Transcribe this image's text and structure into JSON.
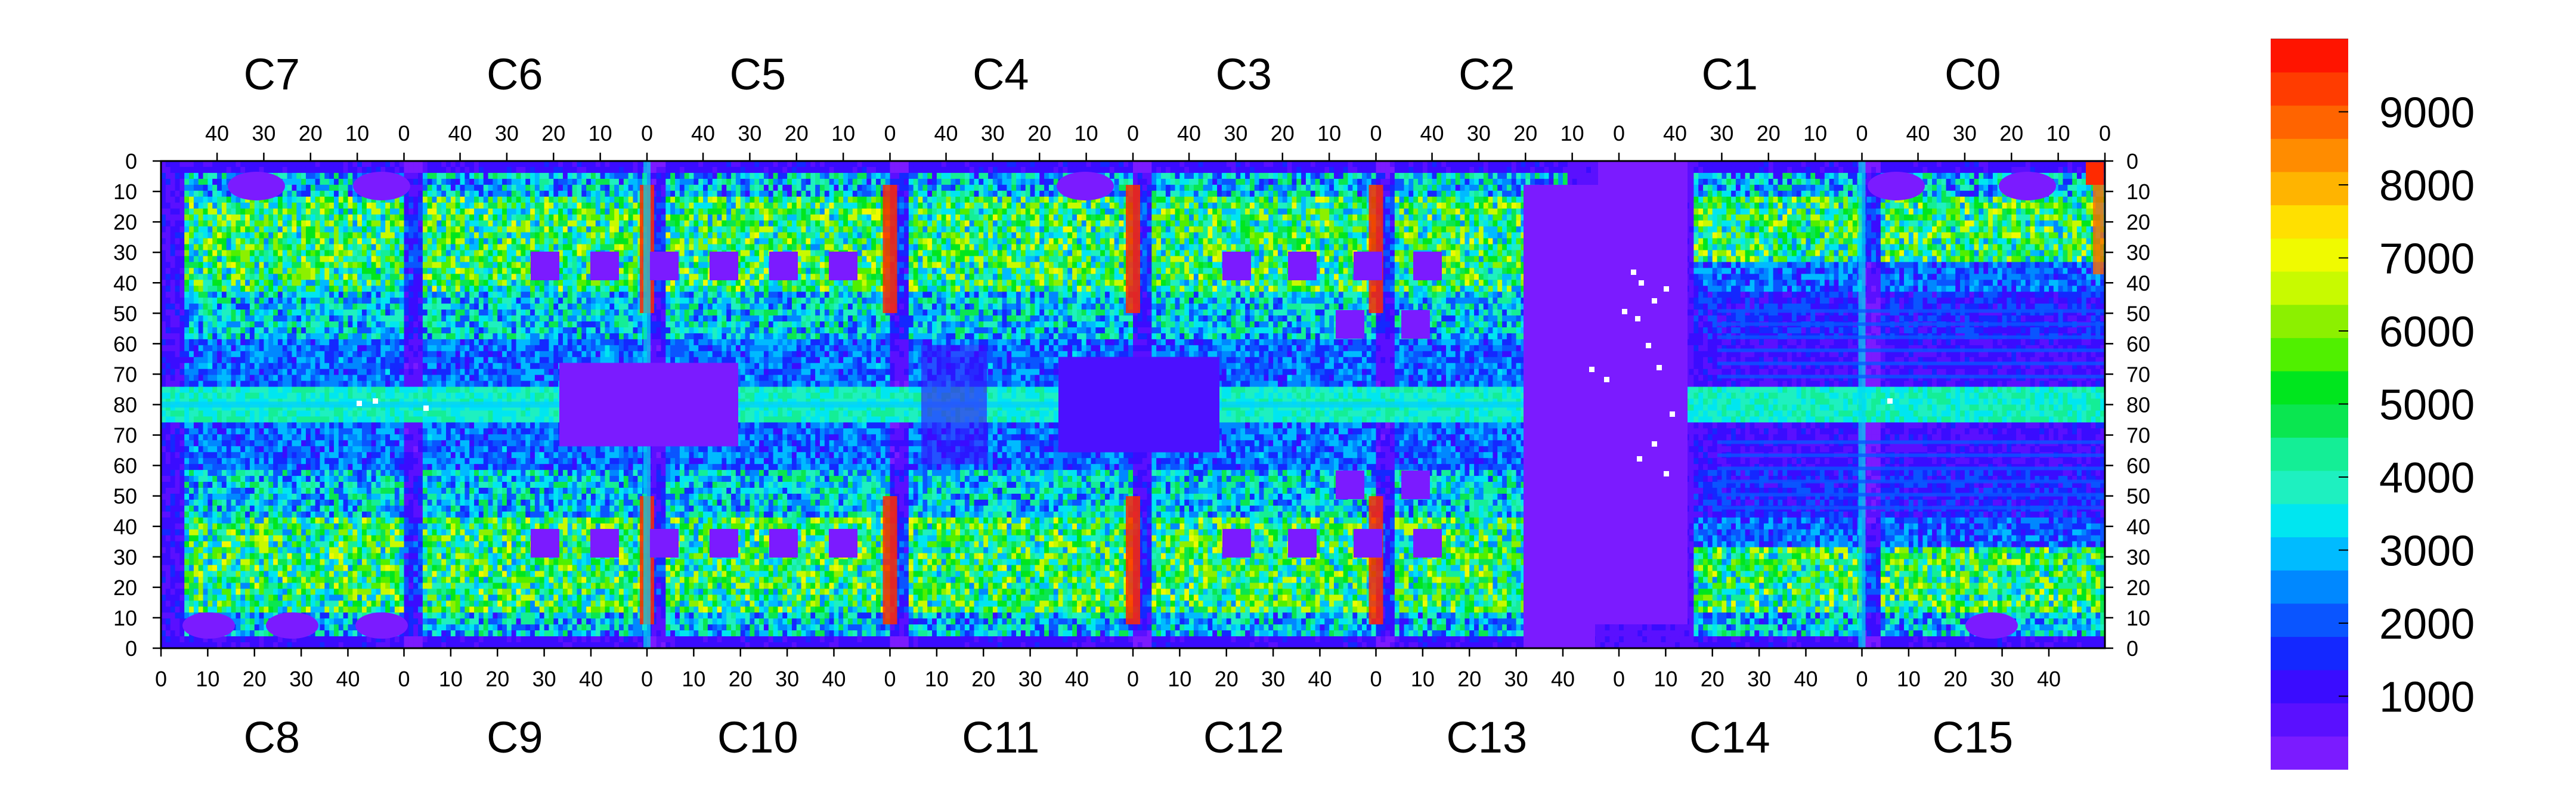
{
  "chart_data": {
    "type": "heatmap",
    "title": "",
    "xlabel": "",
    "ylabel": "",
    "top_chips": [
      "C7",
      "C6",
      "C5",
      "C4",
      "C3",
      "C2",
      "C1",
      "C0"
    ],
    "bottom_chips": [
      "C8",
      "C9",
      "C10",
      "C11",
      "C12",
      "C13",
      "C14",
      "C15"
    ],
    "chip_columns": 52,
    "top_x_ticks": [
      "40",
      "30",
      "20",
      "10",
      "0"
    ],
    "bottom_x_ticks": [
      "0",
      "10",
      "20",
      "30",
      "40"
    ],
    "y_ticks": [
      "0",
      "10",
      "20",
      "30",
      "40",
      "50",
      "60",
      "70",
      "80",
      "70",
      "60",
      "50",
      "40",
      "30",
      "20",
      "10",
      "0"
    ],
    "colorbar": {
      "ticks": [
        "1000",
        "2000",
        "3000",
        "4000",
        "5000",
        "6000",
        "7000",
        "8000",
        "9000"
      ],
      "zrange": [
        0,
        10000
      ],
      "palette": [
        "#7B1BFF",
        "#5A10FF",
        "#3A0CFF",
        "#1428FF",
        "#0A55FF",
        "#0088FF",
        "#00BBFF",
        "#00E6F0",
        "#1EF0C0",
        "#14EE96",
        "#0AE650",
        "#00E61E",
        "#50F000",
        "#8CF000",
        "#C8FA00",
        "#F0FA00",
        "#FFE000",
        "#FFB400",
        "#FF8C00",
        "#FF6400",
        "#FF3C00",
        "#FF1400"
      ]
    }
  }
}
